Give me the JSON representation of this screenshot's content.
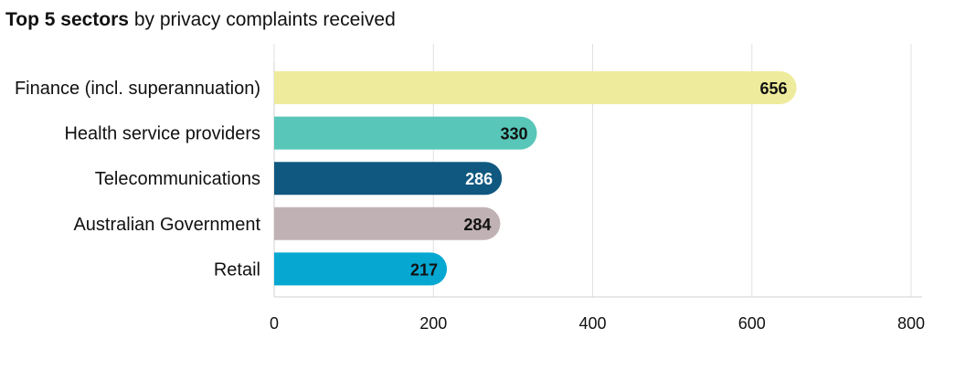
{
  "chart_data": {
    "type": "bar",
    "orientation": "horizontal",
    "title_bold": "Top 5 sectors",
    "title_rest": "by privacy complaints received",
    "categories": [
      "Finance (incl. superannuation)",
      "Health service providers",
      "Telecommunications",
      "Australian Government",
      "Retail"
    ],
    "values": [
      656,
      330,
      286,
      284,
      217
    ],
    "colors": [
      "#eeeb9c",
      "#58c6b8",
      "#105880",
      "#c0b2b4",
      "#06a8d2"
    ],
    "value_label_colors": [
      "#111111",
      "#111111",
      "#ffffff",
      "#111111",
      "#111111"
    ],
    "xlim": [
      0,
      800
    ],
    "xticks": [
      0,
      200,
      400,
      600,
      800
    ],
    "grid": true,
    "xlabel": "",
    "ylabel": ""
  }
}
